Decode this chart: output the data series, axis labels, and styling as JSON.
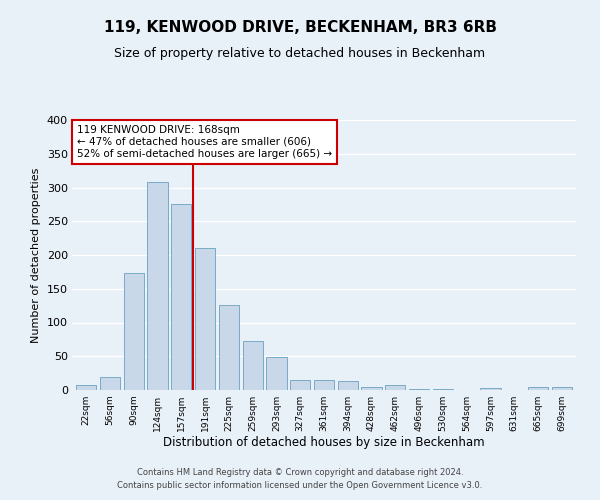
{
  "title": "119, KENWOOD DRIVE, BECKENHAM, BR3 6RB",
  "subtitle": "Size of property relative to detached houses in Beckenham",
  "xlabel": "Distribution of detached houses by size in Beckenham",
  "ylabel": "Number of detached properties",
  "bar_color": "#c8d8e8",
  "bar_edge_color": "#7aaac8",
  "background_color": "#e8f0f8",
  "grid_color": "#ffffff",
  "categories": [
    "22sqm",
    "56sqm",
    "90sqm",
    "124sqm",
    "157sqm",
    "191sqm",
    "225sqm",
    "259sqm",
    "293sqm",
    "327sqm",
    "361sqm",
    "394sqm",
    "428sqm",
    "462sqm",
    "496sqm",
    "530sqm",
    "564sqm",
    "597sqm",
    "631sqm",
    "665sqm",
    "699sqm"
  ],
  "values": [
    7,
    20,
    173,
    308,
    275,
    210,
    126,
    72,
    49,
    15,
    15,
    13,
    4,
    7,
    2,
    1,
    0,
    3,
    0,
    4,
    4
  ],
  "ylim": [
    0,
    400
  ],
  "yticks": [
    0,
    50,
    100,
    150,
    200,
    250,
    300,
    350,
    400
  ],
  "vline_x": 4.5,
  "vline_color": "#cc0000",
  "annotation_title": "119 KENWOOD DRIVE: 168sqm",
  "annotation_line1": "← 47% of detached houses are smaller (606)",
  "annotation_line2": "52% of semi-detached houses are larger (665) →",
  "annotation_box_color": "#ffffff",
  "annotation_box_edge": "#cc0000",
  "footer1": "Contains HM Land Registry data © Crown copyright and database right 2024.",
  "footer2": "Contains public sector information licensed under the Open Government Licence v3.0."
}
